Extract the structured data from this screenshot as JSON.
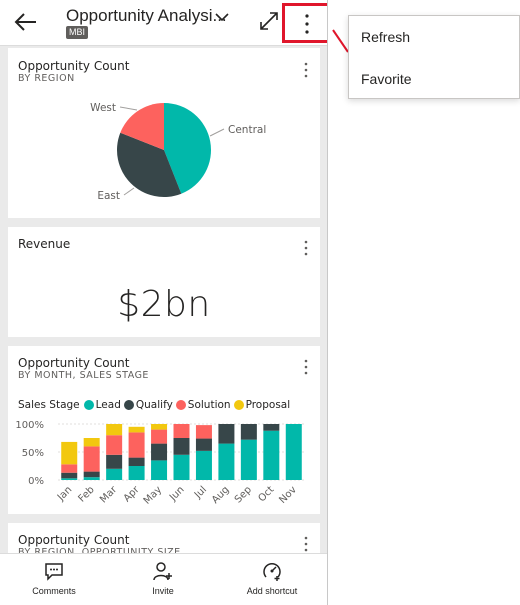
{
  "header": {
    "title": "Opportunity Analysi...",
    "badge": "MBI"
  },
  "menu": {
    "items": [
      "Refresh",
      "Favorite"
    ]
  },
  "cards": {
    "pie": {
      "title": "Opportunity Count",
      "subtitle": "BY REGION"
    },
    "revenue": {
      "title": "Revenue",
      "value": "$2bn"
    },
    "bar": {
      "title": "Opportunity Count",
      "subtitle": "BY MONTH, SALES STAGE",
      "legend_title": "Sales Stage"
    },
    "partial": {
      "title": "Opportunity Count",
      "subtitle": "BY REGION, OPPORTUNITY SIZE"
    }
  },
  "bottom_nav": {
    "items": [
      "Comments",
      "Invite",
      "Add shortcut"
    ]
  },
  "colors": {
    "lead": "#01b8aa",
    "qualify": "#374649",
    "solution": "#fd625e",
    "proposal": "#f2c80f",
    "highlight": "#e0162b"
  },
  "chart_data": [
    {
      "type": "pie",
      "title": "Opportunity Count",
      "subtitle": "BY REGION",
      "categories": [
        "Central",
        "East",
        "West"
      ],
      "values": [
        44,
        37,
        19
      ],
      "colors": [
        "#01b8aa",
        "#374649",
        "#fd625e"
      ]
    },
    {
      "type": "bar",
      "stacked": "100%",
      "title": "Opportunity Count",
      "subtitle": "BY MONTH, SALES STAGE",
      "legend_title": "Sales Stage",
      "legend_position": "top-left",
      "categories": [
        "Jan",
        "Feb",
        "Mar",
        "Apr",
        "May",
        "Jun",
        "Jul",
        "Aug",
        "Sep",
        "Oct",
        "Nov"
      ],
      "series": [
        {
          "name": "Lead",
          "color": "#01b8aa",
          "values": [
            3,
            5,
            20,
            25,
            35,
            45,
            52,
            65,
            72,
            88,
            100
          ]
        },
        {
          "name": "Qualify",
          "color": "#374649",
          "values": [
            10,
            10,
            25,
            15,
            30,
            30,
            22,
            35,
            28,
            12,
            0
          ]
        },
        {
          "name": "Solution",
          "color": "#fd625e",
          "values": [
            15,
            45,
            35,
            45,
            25,
            25,
            24,
            0,
            0,
            0,
            0
          ]
        },
        {
          "name": "Proposal",
          "color": "#f2c80f",
          "values": [
            40,
            15,
            20,
            10,
            10,
            0,
            0,
            0,
            0,
            0,
            0
          ]
        }
      ],
      "y_ticks": [
        "100%",
        "50%",
        "0%"
      ],
      "ylim": [
        0,
        100
      ],
      "grid": true
    }
  ]
}
